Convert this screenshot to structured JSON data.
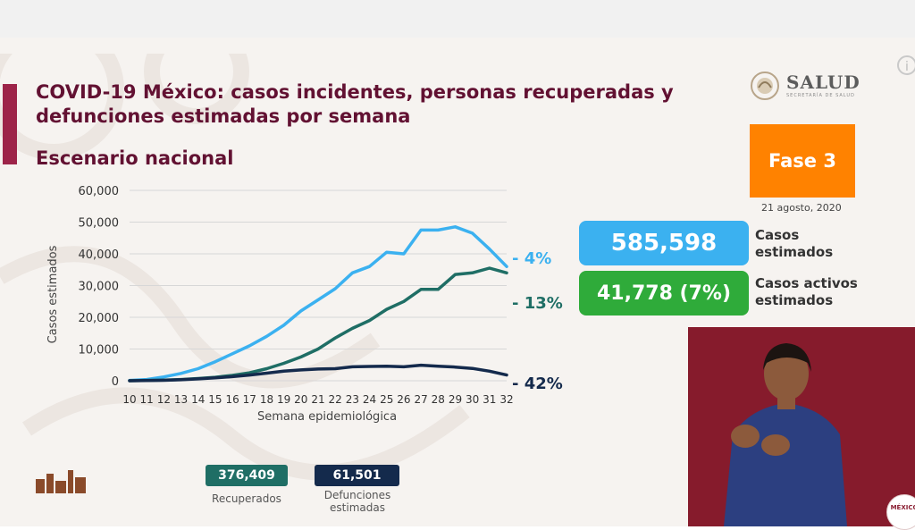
{
  "header": {
    "title": "COVID-19 México: casos incidentes, personas recuperadas y defunciones estimadas por semana",
    "subtitle": "Escenario nacional",
    "info_icon": "info-icon"
  },
  "logo": {
    "name": "SALUD",
    "subtitle": "SECRETARÍA DE SALUD",
    "icon": "eagle-seal-icon"
  },
  "phase": {
    "label": "Fase 3",
    "date": "21 agosto, 2020",
    "color": "#ff8200"
  },
  "kpis": [
    {
      "value": "585,598",
      "label_line1": "Casos",
      "label_line2": "estimados",
      "color": "#3bb1f0"
    },
    {
      "value": "41,778 (7%)",
      "label_line1": "Casos activos",
      "label_line2": "estimados",
      "color": "#2fab3a"
    }
  ],
  "summary": [
    {
      "value": "376,409",
      "label_line1": "Recuperados",
      "label_line2": "",
      "color": "#1f6e65"
    },
    {
      "value": "61,501",
      "label_line1": "Defunciones",
      "label_line2": "estimadas",
      "color": "#142a4c"
    }
  ],
  "corner_logo_text": "MÉXICO",
  "chart_data": {
    "type": "line",
    "title": "",
    "xlabel": "Semana epidemiológica",
    "ylabel": "Casos estimados",
    "ylim": [
      0,
      60000
    ],
    "yticks": [
      0,
      10000,
      20000,
      30000,
      40000,
      50000,
      60000
    ],
    "ytick_labels": [
      "0",
      "10,000",
      "20,000",
      "30,000",
      "40,000",
      "50,000",
      "60,000"
    ],
    "x": [
      10,
      11,
      12,
      13,
      14,
      15,
      16,
      17,
      18,
      19,
      20,
      21,
      22,
      23,
      24,
      25,
      26,
      27,
      28,
      29,
      30,
      31,
      32
    ],
    "grid": true,
    "series": [
      {
        "color": "#3bb1f0",
        "end_label": "- 4%",
        "values": [
          100,
          400,
          1200,
          2300,
          3800,
          6000,
          8500,
          11000,
          14000,
          17500,
          22000,
          25500,
          29000,
          34000,
          36000,
          40500,
          40000,
          47500,
          47500,
          48500,
          46500,
          41500,
          36000
        ]
      },
      {
        "color": "#1f6e65",
        "end_label": "- 13%",
        "values": [
          0,
          100,
          200,
          400,
          700,
          1100,
          1700,
          2500,
          3800,
          5500,
          7500,
          10000,
          13500,
          16500,
          19000,
          22500,
          25000,
          28800,
          28800,
          33500,
          34000,
          35500,
          34000
        ]
      },
      {
        "color": "#142a4c",
        "end_label": "- 42%",
        "values": [
          0,
          50,
          150,
          300,
          600,
          900,
          1300,
          1800,
          2400,
          3000,
          3400,
          3700,
          3800,
          4400,
          4500,
          4600,
          4400,
          4900,
          4600,
          4300,
          3900,
          3000,
          1800
        ]
      }
    ]
  }
}
